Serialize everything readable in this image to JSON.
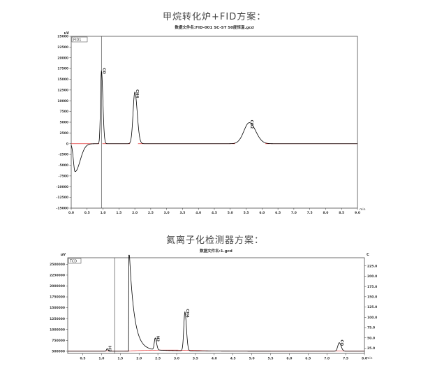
{
  "chart_data": [
    {
      "type": "line",
      "heading": "甲烷转化炉+FID方案：",
      "title": "数据文件名:FID-001 SC-ST 50度恒温.gcd",
      "ylabel": "uV",
      "xlabel": "min",
      "legend": "FID1",
      "xlim": [
        0,
        9.0
      ],
      "ylim": [
        -15000,
        25000
      ],
      "xticks": [
        "0.0",
        "0.5",
        "1.0",
        "1.5",
        "2.0",
        "2.5",
        "3.0",
        "3.5",
        "4.0",
        "4.5",
        "5.0",
        "5.5",
        "6.0",
        "6.5",
        "7.0",
        "7.5",
        "8.0",
        "8.5",
        "9.0"
      ],
      "yticks": [
        "-15000",
        "-12500",
        "-10000",
        "-7500",
        "-5000",
        "-2500",
        "0",
        "2500",
        "5000",
        "7500",
        "10000",
        "12500",
        "15000",
        "17500",
        "20000",
        "22500",
        "25000"
      ],
      "injection_marker_x": 0.95,
      "peaks": [
        {
          "label": "CO",
          "x": 0.95,
          "y": 17000
        },
        {
          "label": "CH4",
          "x": 2.0,
          "y": 12000
        },
        {
          "label": "CO2",
          "x": 5.6,
          "y": 4900
        }
      ],
      "baseline_dip": {
        "x": 0.12,
        "y": -6500
      },
      "colors": {
        "signal": "#000000",
        "baseline": "#e03030",
        "axis": "#333333"
      }
    },
    {
      "type": "line",
      "heading": "氦离子化检测器方案：",
      "title": "数据文件名:1.gcd",
      "ylabel": "uV",
      "y2label": "C",
      "xlabel": "min",
      "legend": "TCD",
      "xlim": [
        0.1,
        8.0
      ],
      "ylim": [
        450000,
        2650000
      ],
      "y2lim": [
        12,
        245
      ],
      "xticks": [
        "0.5",
        "1.0",
        "1.5",
        "2.0",
        "2.5",
        "3.0",
        "3.5",
        "4.0",
        "4.5",
        "5.0",
        "5.5",
        "6.0",
        "6.5",
        "7.0",
        "7.5",
        "8.0"
      ],
      "yticks": [
        "500000",
        "750000",
        "1000000",
        "1250000",
        "1500000",
        "1750000",
        "2000000",
        "2250000",
        "2500000"
      ],
      "y2ticks": [
        "25.0",
        "50.0",
        "75.0",
        "100.0",
        "125.0",
        "150.0",
        "175.0",
        "200.0",
        "225.0"
      ],
      "injection_marker_x": 1.35,
      "peaks": [
        {
          "label": "H2",
          "x": 1.15,
          "y": 560000
        },
        {
          "label": "N2",
          "x": 2.43,
          "y": 790000
        },
        {
          "label": "CH4",
          "x": 3.22,
          "y": 1410000
        },
        {
          "label": "CO",
          "x": 7.33,
          "y": 700000
        }
      ],
      "colors": {
        "signal": "#000000",
        "baseline": "#e03030",
        "axis": "#333333"
      }
    }
  ]
}
